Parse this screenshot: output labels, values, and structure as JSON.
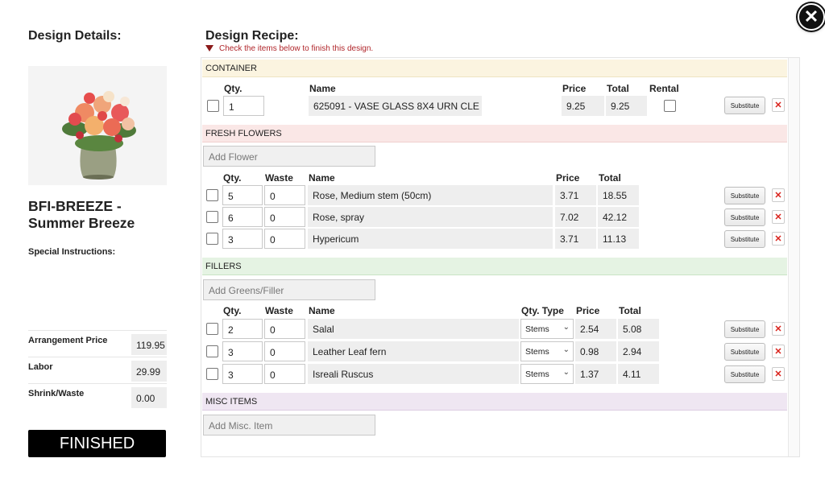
{
  "close_label": "✕",
  "left": {
    "heading": "Design Details:",
    "product_title": "BFI-BREEZE - Summer Breeze",
    "special_label": "Special Instructions:",
    "prices": [
      {
        "label": "Arrangement Price",
        "value": "119.95"
      },
      {
        "label": "Labor",
        "value": "29.99"
      },
      {
        "label": "Shrink/Waste",
        "value": "0.00"
      }
    ],
    "finished_label": "FINISHED"
  },
  "recipe": {
    "heading": "Design Recipe:",
    "warning": "Check the items below to finish this design.",
    "container": {
      "title": "CONTAINER",
      "headers": {
        "qty": "Qty.",
        "name": "Name",
        "price": "Price",
        "total": "Total",
        "rental": "Rental"
      },
      "item": {
        "qty": "1",
        "name": "625091 - VASE GLASS 8X4 URN CLE",
        "price": "9.25",
        "total": "9.25",
        "substitute": "Substitute",
        "delete": "✕"
      }
    },
    "flowers": {
      "title": "FRESH FLOWERS",
      "add_placeholder": "Add Flower",
      "headers": {
        "qty": "Qty.",
        "waste": "Waste",
        "name": "Name",
        "price": "Price",
        "total": "Total"
      },
      "items": [
        {
          "qty": "5",
          "waste": "0",
          "name": "Rose, Medium stem  (50cm)",
          "price": "3.71",
          "total": "18.55"
        },
        {
          "qty": "6",
          "waste": "0",
          "name": "Rose, spray",
          "price": "7.02",
          "total": "42.12"
        },
        {
          "qty": "3",
          "waste": "0",
          "name": "Hypericum",
          "price": "3.71",
          "total": "11.13"
        }
      ]
    },
    "fillers": {
      "title": "FILLERS",
      "add_placeholder": "Add Greens/Filler",
      "headers": {
        "qty": "Qty.",
        "waste": "Waste",
        "name": "Name",
        "qty_type": "Qty. Type",
        "price": "Price",
        "total": "Total"
      },
      "items": [
        {
          "qty": "2",
          "waste": "0",
          "name": "Salal",
          "qty_type": "Stems",
          "price": "2.54",
          "total": "5.08"
        },
        {
          "qty": "3",
          "waste": "0",
          "name": "Leather Leaf fern",
          "qty_type": "Stems",
          "price": "0.98",
          "total": "2.94"
        },
        {
          "qty": "3",
          "waste": "0",
          "name": "Isreali Ruscus",
          "qty_type": "Stems",
          "price": "1.37",
          "total": "4.11"
        }
      ]
    },
    "misc": {
      "title": "MISC ITEMS",
      "add_placeholder": "Add Misc. Item"
    },
    "substitute_label": "Substitute",
    "delete_label": "✕"
  }
}
